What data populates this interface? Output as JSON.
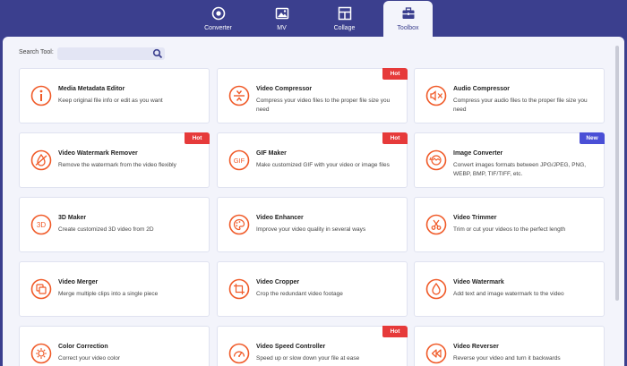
{
  "nav": {
    "tabs": [
      {
        "label": "Converter",
        "icon": "converter-icon"
      },
      {
        "label": "MV",
        "icon": "mv-icon"
      },
      {
        "label": "Collage",
        "icon": "collage-icon"
      },
      {
        "label": "Toolbox",
        "icon": "toolbox-icon"
      }
    ],
    "active": "Toolbox"
  },
  "search": {
    "label": "Search Tool:",
    "placeholder": "",
    "value": ""
  },
  "tools": [
    {
      "title": "Media Metadata Editor",
      "desc": "Keep original file info or edit as you want",
      "badge": "",
      "icon": "info-icon"
    },
    {
      "title": "Video Compressor",
      "desc": "Compress your video files to the proper file size you need",
      "badge": "Hot",
      "icon": "compress-icon"
    },
    {
      "title": "Audio Compressor",
      "desc": "Compress your audio files to the proper file size you need",
      "badge": "",
      "icon": "audio-compress-icon"
    },
    {
      "title": "Video Watermark Remover",
      "desc": "Remove the watermark from the video flexibly",
      "badge": "Hot",
      "icon": "watermark-remove-icon"
    },
    {
      "title": "GIF Maker",
      "desc": "Make customized GIF with your video or image files",
      "badge": "Hot",
      "icon": "gif-icon"
    },
    {
      "title": "Image Converter",
      "desc": "Convert images formats between JPG/JPEG, PNG, WEBP, BMP, TIF/TIFF, etc.",
      "badge": "New",
      "icon": "image-convert-icon"
    },
    {
      "title": "3D Maker",
      "desc": "Create customized 3D video from 2D",
      "badge": "",
      "icon": "3d-icon"
    },
    {
      "title": "Video Enhancer",
      "desc": "Improve your video quality in several ways",
      "badge": "",
      "icon": "palette-icon"
    },
    {
      "title": "Video Trimmer",
      "desc": "Trim or cut your videos to the perfect length",
      "badge": "",
      "icon": "scissors-icon"
    },
    {
      "title": "Video Merger",
      "desc": "Merge multiple clips into a single piece",
      "badge": "",
      "icon": "merge-icon"
    },
    {
      "title": "Video Cropper",
      "desc": "Crop the redundant video footage",
      "badge": "",
      "icon": "crop-icon"
    },
    {
      "title": "Video Watermark",
      "desc": "Add text and image watermark to the video",
      "badge": "",
      "icon": "droplet-icon"
    },
    {
      "title": "Color Correction",
      "desc": "Correct your video color",
      "badge": "",
      "icon": "sun-icon"
    },
    {
      "title": "Video Speed Controller",
      "desc": "Speed up or slow down your file at ease",
      "badge": "Hot",
      "icon": "speedometer-icon"
    },
    {
      "title": "Video Reverser",
      "desc": "Reverse your video and turn it backwards",
      "badge": "",
      "icon": "rewind-icon"
    }
  ],
  "colors": {
    "accent": "#f05a28",
    "nav_bg": "#3b3f8e",
    "hot": "#e63a3a",
    "new": "#4a4fd6"
  }
}
